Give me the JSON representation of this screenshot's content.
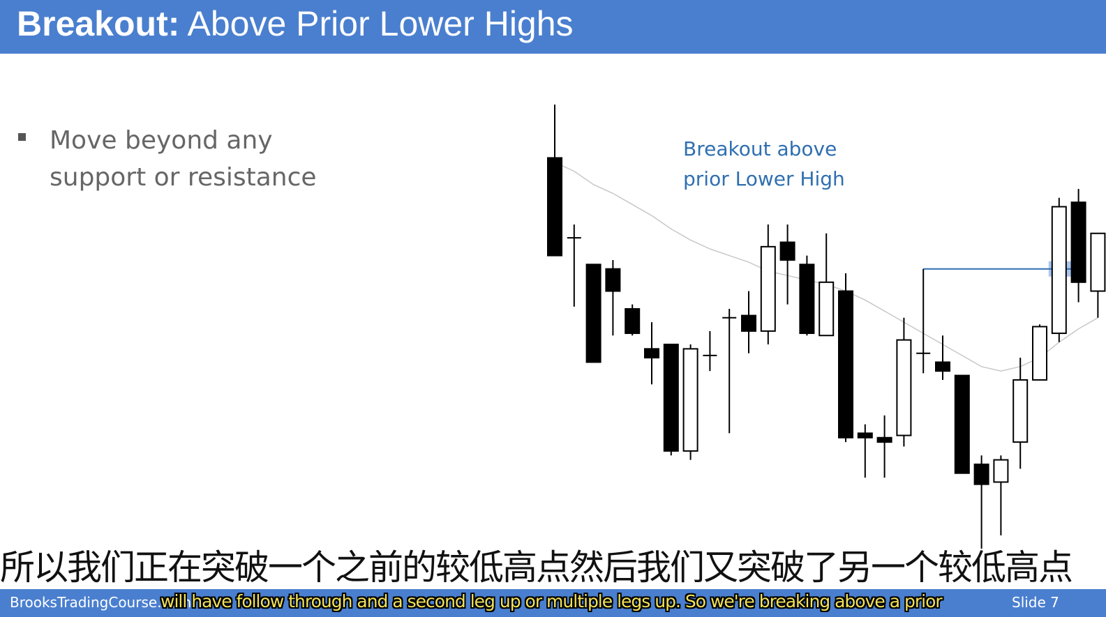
{
  "slide": {
    "title_bold": "Breakout:",
    "title_rest": "Above Prior Lower Highs",
    "bullets": [
      "Move beyond any support or resistance"
    ],
    "annotation_line1": "Breakout above",
    "annotation_line2": "prior Lower High",
    "footer_brand": "BrooksTradingCourse.com",
    "footer_slide": "Slide  7"
  },
  "subtitles": {
    "chinese": "所以我们正在突破一个之前的较低高点然后我们又突破了另一个较低高点",
    "english": "will have follow through and a second leg up or multiple legs up. So we're breaking above a prior"
  },
  "colors": {
    "header_bar": "#4a7fcf",
    "annotation_text": "#2f6fb0",
    "bullet_text": "#666666",
    "bear_candle": "#000000",
    "bull_candle": "#ffffff",
    "moving_average": "#c8c8c8",
    "breakout_line": "#2f6fb0",
    "breakout_marker": "#8fb3e8"
  },
  "chart_data": {
    "type": "candlestick",
    "title": "",
    "xlabel": "",
    "ylabel": "",
    "ylim": [
      0,
      100
    ],
    "candles": [
      {
        "o": 88,
        "h": 100,
        "l": 66,
        "c": 66
      },
      {
        "o": 70,
        "h": 73,
        "l": 54.5,
        "c": 70
      },
      {
        "o": 64,
        "h": 64,
        "l": 42,
        "c": 42
      },
      {
        "o": 63,
        "h": 65,
        "l": 48,
        "c": 58
      },
      {
        "o": 54,
        "h": 55,
        "l": 48,
        "c": 48.5
      },
      {
        "o": 45,
        "h": 51,
        "l": 37,
        "c": 43
      },
      {
        "o": 46,
        "h": 46,
        "l": 21,
        "c": 22
      },
      {
        "o": 22,
        "h": 46,
        "l": 20,
        "c": 45
      },
      {
        "o": 43.5,
        "h": 49,
        "l": 40,
        "c": 43.5
      },
      {
        "o": 52,
        "h": 54,
        "l": 26,
        "c": 52
      },
      {
        "o": 52.5,
        "h": 58,
        "l": 44,
        "c": 49
      },
      {
        "o": 49,
        "h": 73,
        "l": 46,
        "c": 68
      },
      {
        "o": 69,
        "h": 73,
        "l": 55,
        "c": 65
      },
      {
        "o": 64,
        "h": 66,
        "l": 48,
        "c": 48.5
      },
      {
        "o": 48,
        "h": 71,
        "l": 48,
        "c": 60
      },
      {
        "o": 58,
        "h": 62,
        "l": 24,
        "c": 25
      },
      {
        "o": 26,
        "h": 28,
        "l": 16,
        "c": 25
      },
      {
        "o": 25,
        "h": 30,
        "l": 16,
        "c": 24
      },
      {
        "o": 25.5,
        "h": 52,
        "l": 23,
        "c": 47
      },
      {
        "o": 44,
        "h": 63,
        "l": 39.5,
        "c": 44
      },
      {
        "o": 42,
        "h": 48,
        "l": 38,
        "c": 40
      },
      {
        "o": 39,
        "h": 39,
        "l": 17,
        "c": 17
      },
      {
        "o": 19,
        "h": 21,
        "l": 0,
        "c": 14.5
      },
      {
        "o": 15,
        "h": 21,
        "l": 3,
        "c": 20
      },
      {
        "o": 24,
        "h": 43,
        "l": 18,
        "c": 38
      },
      {
        "o": 38,
        "h": 50.5,
        "l": 38,
        "c": 50
      },
      {
        "o": 48.5,
        "h": 79,
        "l": 46.5,
        "c": 77
      },
      {
        "o": 78,
        "h": 81,
        "l": 55.5,
        "c": 60
      },
      {
        "o": 58,
        "h": 71,
        "l": 52,
        "c": 71
      }
    ],
    "moving_average": [
      87,
      85,
      82,
      80,
      77.5,
      75,
      72,
      69.5,
      67.5,
      66,
      64.5,
      62.5,
      61.5,
      60.5,
      59.5,
      58,
      56,
      53.5,
      51,
      48.5,
      46,
      43.5,
      41,
      40,
      41,
      43,
      46.5,
      49.5,
      52
    ],
    "prior_lower_high": {
      "candle_index": 19,
      "breakout_candle_index": 26,
      "level": 63
    }
  }
}
